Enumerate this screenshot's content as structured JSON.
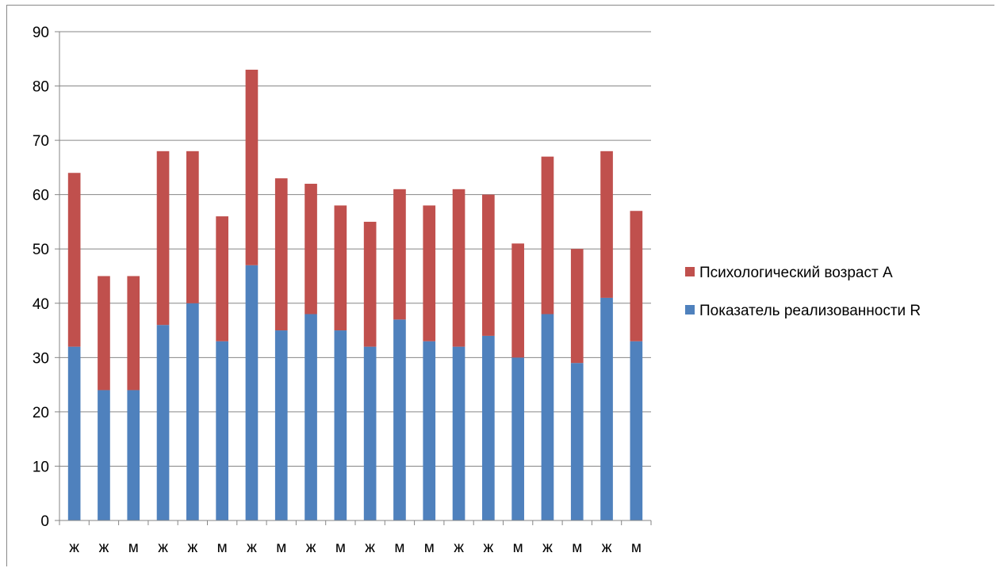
{
  "chart_data": {
    "type": "bar",
    "stacked": true,
    "categories": [
      "ж",
      "ж",
      "м",
      "ж",
      "ж",
      "м",
      "ж",
      "м",
      "ж",
      "м",
      "ж",
      "м",
      "м",
      "ж",
      "ж",
      "м",
      "ж",
      "м",
      "ж",
      "м"
    ],
    "series": [
      {
        "name": "Показатель реализованности R",
        "color": "#4F81BD",
        "values": [
          32,
          24,
          24,
          36,
          40,
          33,
          47,
          35,
          38,
          35,
          32,
          37,
          33,
          32,
          34,
          30,
          38,
          29,
          41,
          33
        ]
      },
      {
        "name": "Психологический возраст А",
        "color": "#C0504D",
        "values": [
          32,
          21,
          21,
          32,
          28,
          23,
          36,
          28,
          24,
          23,
          23,
          24,
          25,
          29,
          26,
          21,
          29,
          21,
          27,
          24
        ]
      }
    ],
    "ylim": [
      0,
      90
    ],
    "yticks": [
      0,
      10,
      20,
      30,
      40,
      50,
      60,
      70,
      80,
      90
    ],
    "grid": true,
    "legend_position": "right"
  }
}
